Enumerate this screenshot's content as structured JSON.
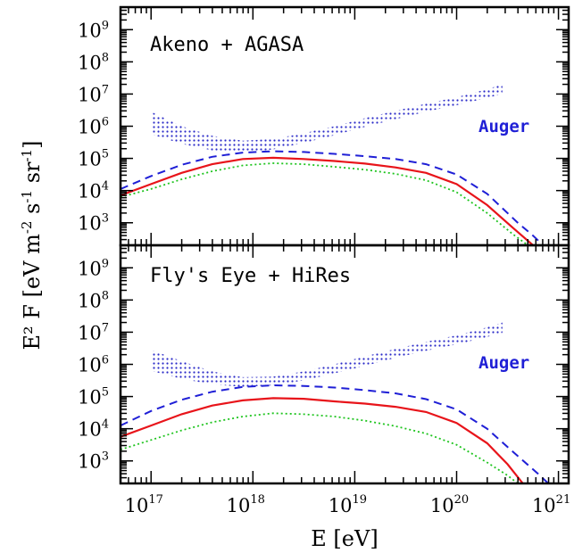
{
  "chart_data": {
    "type": "line",
    "xlabel": "E [eV]",
    "ylabel_parts": {
      "main": "E² F [eV m",
      "exp1": "-2",
      "mid1": " s",
      "exp2": "-1",
      "mid2": " sr",
      "exp3": "-1",
      "end": "]"
    },
    "x_scale": "log",
    "y_scale": "log",
    "xlim_log10": [
      16.7,
      21.1
    ],
    "ylim_log10": [
      2.3,
      9.7
    ],
    "x_ticks_log10": [
      17,
      18,
      19,
      20,
      21
    ],
    "y_ticks_log10": [
      3,
      4,
      5,
      6,
      7,
      8,
      9
    ],
    "tick_base": "10",
    "colors": {
      "blue_dashed": "#1f1fd6",
      "red_solid": "#e8141a",
      "green_dotted": "#1ec41e",
      "band": "#2a2ac8",
      "auger_label": "#1f1fd6"
    },
    "panels": [
      {
        "name": "Akeno + AGASA",
        "band_label": "Auger",
        "band": {
          "x_log10": [
            17.0,
            17.3,
            17.6,
            17.9,
            18.2,
            18.5,
            18.8,
            19.1,
            19.4,
            19.7,
            20.0,
            20.3,
            20.45
          ],
          "lo_log10": [
            5.75,
            5.45,
            5.25,
            5.18,
            5.28,
            5.48,
            5.72,
            5.98,
            6.22,
            6.45,
            6.65,
            6.88,
            7.0
          ],
          "hi_log10": [
            6.45,
            6.0,
            5.7,
            5.55,
            5.6,
            5.78,
            6.0,
            6.25,
            6.48,
            6.7,
            6.9,
            7.15,
            7.3
          ]
        },
        "series": [
          {
            "style": "blue_dashed",
            "x_log10": [
              16.7,
              17.0,
              17.3,
              17.6,
              17.9,
              18.2,
              18.5,
              18.8,
              19.1,
              19.4,
              19.7,
              20.0,
              20.3,
              20.6,
              20.75,
              20.85
            ],
            "y_log10": [
              4.05,
              4.45,
              4.8,
              5.05,
              5.18,
              5.22,
              5.2,
              5.14,
              5.07,
              4.98,
              4.82,
              4.5,
              3.9,
              3.0,
              2.6,
              2.3
            ]
          },
          {
            "style": "red_solid",
            "x_log10": [
              16.7,
              17.0,
              17.3,
              17.6,
              17.9,
              18.2,
              18.5,
              18.8,
              19.1,
              19.4,
              19.7,
              20.0,
              20.3,
              20.55,
              20.75
            ],
            "y_log10": [
              3.85,
              4.2,
              4.55,
              4.82,
              4.98,
              5.02,
              4.98,
              4.92,
              4.84,
              4.72,
              4.55,
              4.2,
              3.55,
              2.85,
              2.3
            ]
          },
          {
            "style": "green_dotted",
            "x_log10": [
              16.7,
              17.0,
              17.3,
              17.6,
              17.9,
              18.2,
              18.5,
              18.8,
              19.1,
              19.4,
              19.7,
              20.0,
              20.3,
              20.55,
              20.7
            ],
            "y_log10": [
              3.8,
              4.05,
              4.35,
              4.6,
              4.78,
              4.85,
              4.82,
              4.74,
              4.65,
              4.52,
              4.32,
              3.95,
              3.3,
              2.65,
              2.3
            ]
          }
        ]
      },
      {
        "name": "Fly's Eye + HiRes",
        "band_label": "Auger",
        "band": {
          "x_log10": [
            17.0,
            17.3,
            17.6,
            17.9,
            18.2,
            18.5,
            18.8,
            19.1,
            19.4,
            19.7,
            20.0,
            20.3,
            20.45
          ],
          "lo_log10": [
            5.8,
            5.55,
            5.38,
            5.3,
            5.35,
            5.5,
            5.72,
            5.95,
            6.2,
            6.42,
            6.62,
            6.85,
            6.98
          ],
          "hi_log10": [
            6.45,
            6.1,
            5.78,
            5.6,
            5.62,
            5.78,
            6.0,
            6.25,
            6.48,
            6.7,
            6.9,
            7.15,
            7.3
          ]
        },
        "series": [
          {
            "style": "blue_dashed",
            "x_log10": [
              16.7,
              17.0,
              17.3,
              17.6,
              17.9,
              18.2,
              18.5,
              18.8,
              19.1,
              19.4,
              19.7,
              20.0,
              20.3,
              20.6,
              20.8,
              20.9
            ],
            "y_log10": [
              4.1,
              4.55,
              4.9,
              5.15,
              5.3,
              5.35,
              5.33,
              5.28,
              5.2,
              5.1,
              4.92,
              4.6,
              4.0,
              3.15,
              2.6,
              2.3
            ]
          },
          {
            "style": "red_solid",
            "x_log10": [
              16.7,
              17.0,
              17.3,
              17.6,
              17.9,
              18.2,
              18.5,
              18.8,
              19.1,
              19.4,
              19.7,
              20.0,
              20.3,
              20.5,
              20.65
            ],
            "y_log10": [
              3.75,
              4.1,
              4.45,
              4.72,
              4.88,
              4.95,
              4.93,
              4.85,
              4.78,
              4.68,
              4.52,
              4.18,
              3.55,
              2.9,
              2.3
            ]
          },
          {
            "style": "green_dotted",
            "x_log10": [
              16.7,
              17.0,
              17.3,
              17.6,
              17.9,
              18.2,
              18.5,
              18.8,
              19.1,
              19.4,
              19.7,
              20.0,
              20.3,
              20.5,
              20.6
            ],
            "y_log10": [
              3.35,
              3.65,
              3.95,
              4.2,
              4.38,
              4.48,
              4.45,
              4.38,
              4.25,
              4.08,
              3.85,
              3.5,
              2.95,
              2.55,
              2.3
            ]
          }
        ]
      }
    ]
  }
}
